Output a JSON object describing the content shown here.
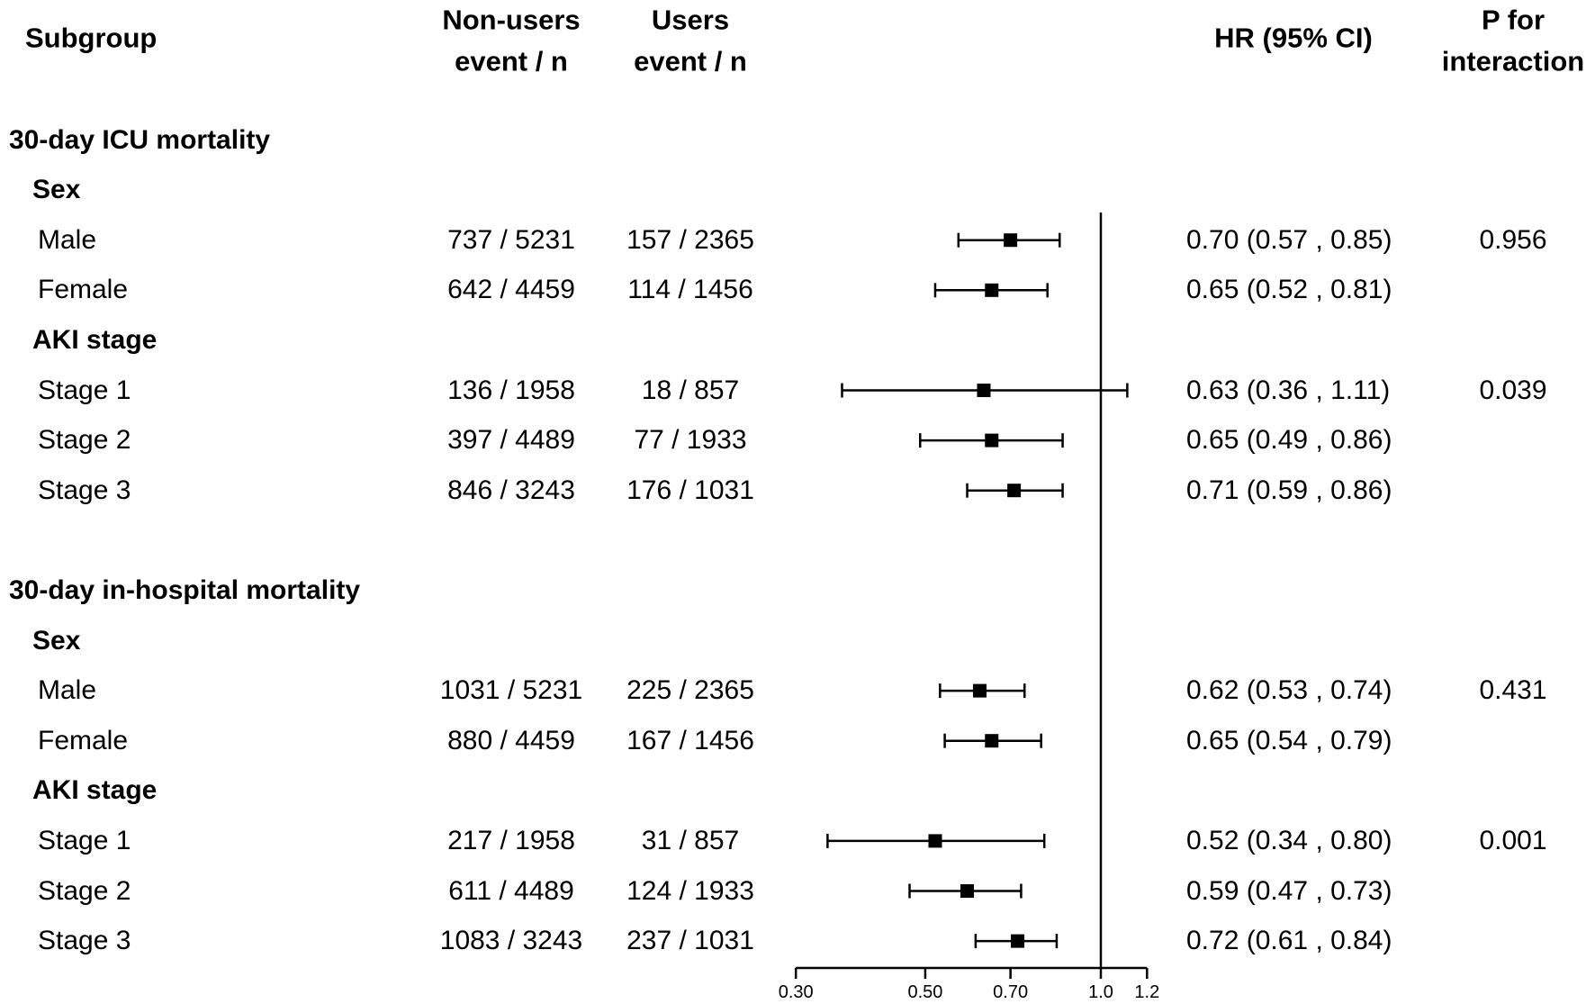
{
  "header": {
    "subgroup": "Subgroup",
    "nonusers_line1": "Non-users",
    "nonusers_line2": "event / n",
    "users_line1": "Users",
    "users_line2": "event / n",
    "hr": "HR (95% CI)",
    "p_line1": "P for",
    "p_line2": "interaction"
  },
  "colors": {
    "text": "#000000",
    "line": "#000000",
    "marker": "#000000",
    "background": "#ffffff"
  },
  "chart_data": {
    "type": "forest",
    "title": "",
    "x_axis": {
      "scale": "log10",
      "range": [
        0.3,
        1.2
      ],
      "ticks": [
        0.3,
        0.5,
        0.7,
        1.0,
        1.2
      ],
      "tick_labels": [
        "0.30",
        "0.50",
        "0.70",
        "1.0",
        "1.2"
      ],
      "reference_line": 1.0
    },
    "rows": [
      {
        "type": "section",
        "label": "30-day ICU mortality"
      },
      {
        "type": "subsection",
        "label": "Sex"
      },
      {
        "type": "item",
        "label": "Male",
        "nonusers": "737 / 5231",
        "users": "157 / 2365",
        "hr": 0.7,
        "ci_low": 0.57,
        "ci_high": 0.85,
        "p": "0.956"
      },
      {
        "type": "item",
        "label": "Female",
        "nonusers": "642 / 4459",
        "users": "114 / 1456",
        "hr": 0.65,
        "ci_low": 0.52,
        "ci_high": 0.81,
        "p": ""
      },
      {
        "type": "subsection",
        "label": "AKI stage"
      },
      {
        "type": "item",
        "label": "Stage 1",
        "nonusers": "136 / 1958",
        "users": "18 / 857",
        "hr": 0.63,
        "ci_low": 0.36,
        "ci_high": 1.11,
        "p": "0.039"
      },
      {
        "type": "item",
        "label": "Stage 2",
        "nonusers": "397 / 4489",
        "users": "77 / 1933",
        "hr": 0.65,
        "ci_low": 0.49,
        "ci_high": 0.86,
        "p": ""
      },
      {
        "type": "item",
        "label": "Stage 3",
        "nonusers": "846 / 3243",
        "users": "176 / 1031",
        "hr": 0.71,
        "ci_low": 0.59,
        "ci_high": 0.86,
        "p": ""
      },
      {
        "type": "spacer"
      },
      {
        "type": "section",
        "label": "30-day in-hospital mortality"
      },
      {
        "type": "subsection",
        "label": "Sex"
      },
      {
        "type": "item",
        "label": "Male",
        "nonusers": "1031 / 5231",
        "users": "225 / 2365",
        "hr": 0.62,
        "ci_low": 0.53,
        "ci_high": 0.74,
        "p": "0.431"
      },
      {
        "type": "item",
        "label": "Female",
        "nonusers": "880 / 4459",
        "users": "167 / 1456",
        "hr": 0.65,
        "ci_low": 0.54,
        "ci_high": 0.79,
        "p": ""
      },
      {
        "type": "subsection",
        "label": "AKI stage"
      },
      {
        "type": "item",
        "label": "Stage 1",
        "nonusers": "217 / 1958",
        "users": "31 / 857",
        "hr": 0.52,
        "ci_low": 0.34,
        "ci_high": 0.8,
        "p": "0.001"
      },
      {
        "type": "item",
        "label": "Stage 2",
        "nonusers": "611 / 4489",
        "users": "124 / 1933",
        "hr": 0.59,
        "ci_low": 0.47,
        "ci_high": 0.73,
        "p": ""
      },
      {
        "type": "item",
        "label": "Stage 3",
        "nonusers": "1083 / 3243",
        "users": "237 / 1031",
        "hr": 0.72,
        "ci_low": 0.61,
        "ci_high": 0.84,
        "p": ""
      }
    ]
  }
}
